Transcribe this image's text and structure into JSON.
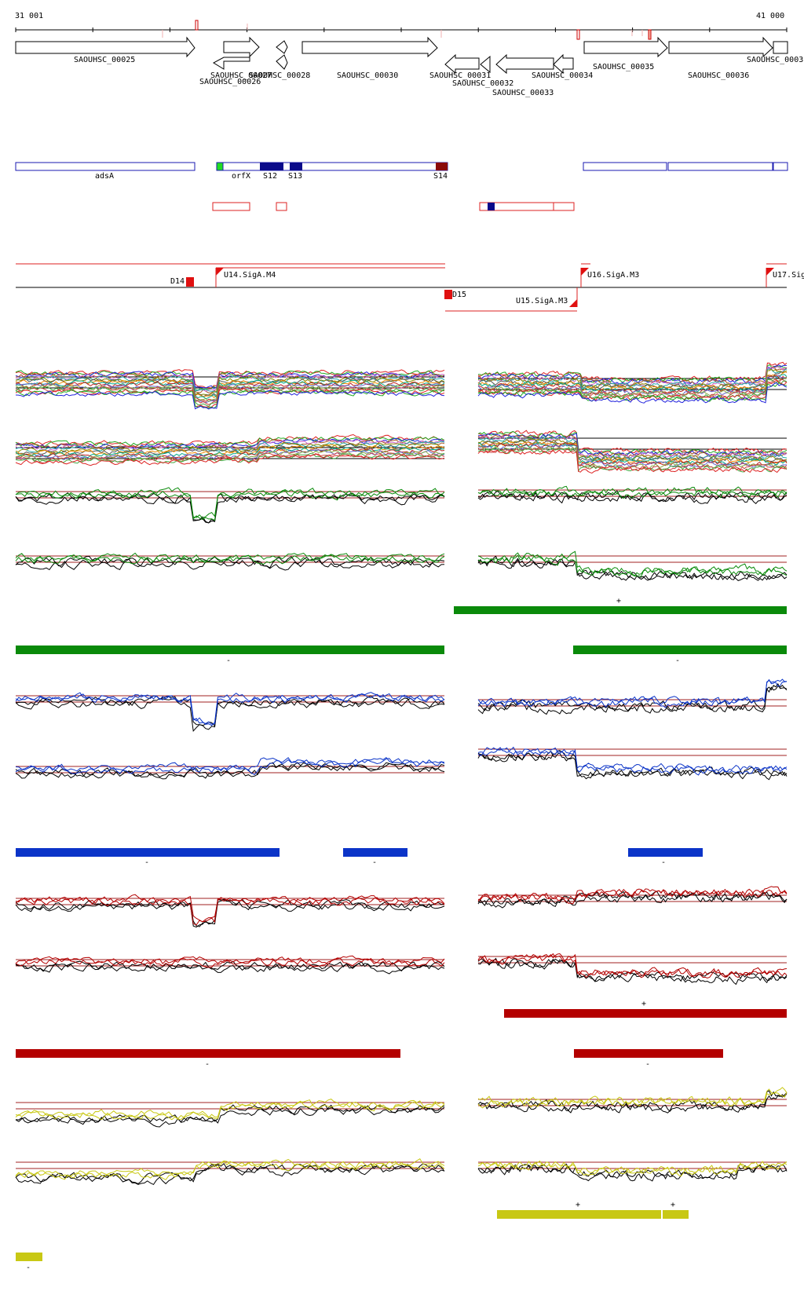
{
  "coords": {
    "start": "31 001",
    "end": "41 000"
  },
  "genes": [
    {
      "id": "SAOUHSC_00025"
    },
    {
      "id": "SAOUHSC_00026"
    },
    {
      "id": "SAOUHSC_00027"
    },
    {
      "id": "SAOUHSC_00028"
    },
    {
      "id": "SAOUHSC_00030"
    },
    {
      "id": "SAOUHSC_00031"
    },
    {
      "id": "SAOUHSC_00032"
    },
    {
      "id": "SAOUHSC_00033"
    },
    {
      "id": "SAOUHSC_00034"
    },
    {
      "id": "SAOUHSC_00035"
    },
    {
      "id": "SAOUHSC_00036"
    },
    {
      "id": "SAOUHSC_0003"
    }
  ],
  "annotations": [
    {
      "label": "adsA"
    },
    {
      "label": "orfX"
    },
    {
      "label": "S12"
    },
    {
      "label": "S13"
    },
    {
      "label": "S14"
    }
  ],
  "transcription_units": [
    {
      "label": "D14"
    },
    {
      "label": "U14.SigA.M4"
    },
    {
      "label": "D15"
    },
    {
      "label": "U15.SigA.M3"
    },
    {
      "label": "U16.SigA.M3"
    },
    {
      "label": "U17.Sig"
    }
  ],
  "strand_marks": {
    "plus": "+",
    "minus": "-"
  },
  "colors": {
    "green": "#0a8a0a",
    "blue": "#0b34c8",
    "red": "#b40000",
    "yellow": "#c8c814",
    "threshold": "#a02020",
    "gene_box": "#1a1ab0"
  }
}
